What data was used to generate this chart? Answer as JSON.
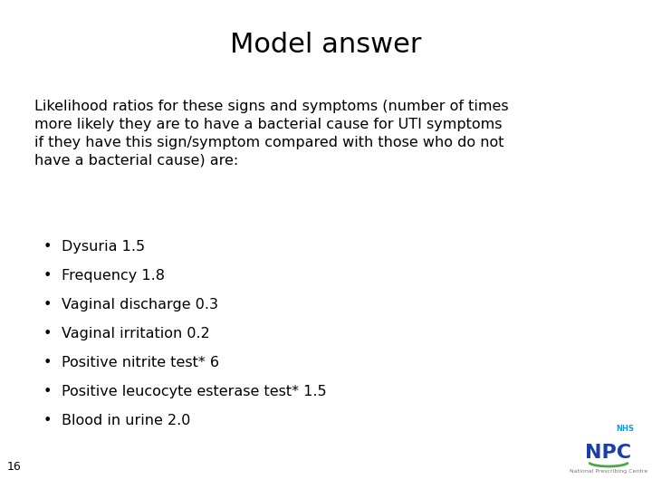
{
  "title": "Model answer",
  "title_fontsize": 22,
  "bg_color": "#ffffff",
  "text_color": "#000000",
  "body_text": "Likelihood ratios for these signs and symptoms (number of times\nmore likely they are to have a bacterial cause for UTI symptoms\nif they have this sign/symptom compared with those who do not\nhave a bacterial cause) are:",
  "body_fontsize": 11.5,
  "bullet_items": [
    "Dysuria 1.5",
    "Frequency 1.8",
    "Vaginal discharge 0.3",
    "Vaginal irritation 0.2",
    "Positive nitrite test* 6",
    "Positive leucocyte esterase test* 1.5",
    "Blood in urine 2.0"
  ],
  "bullet_fontsize": 11.5,
  "page_number": "16",
  "page_number_fontsize": 9,
  "npc_text": "NPC",
  "npc_color": "#1a3faa",
  "nhs_text": "NHS",
  "nhs_color": "#1199dd",
  "green_arc_color": "#44aa44",
  "small_text": "National Prescribing Centre",
  "small_text_color": "#777777"
}
